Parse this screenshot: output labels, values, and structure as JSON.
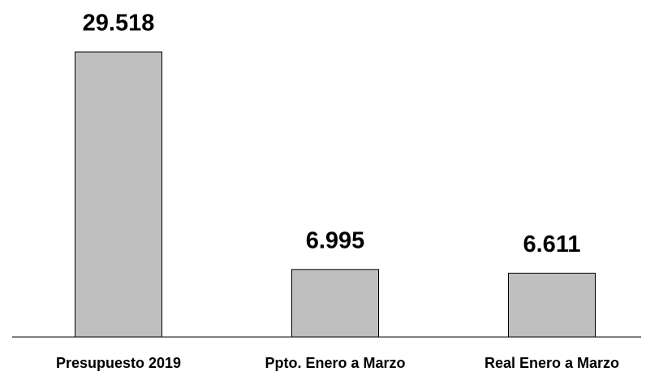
{
  "chart_data": {
    "type": "bar",
    "categories": [
      "Presupuesto 2019",
      "Ppto. Enero a Marzo",
      "Real Enero a Marzo"
    ],
    "values": [
      29518,
      6995,
      6611
    ],
    "value_labels": [
      "29.518",
      "6.995",
      "6.611"
    ],
    "color": "#bfbfbf"
  }
}
